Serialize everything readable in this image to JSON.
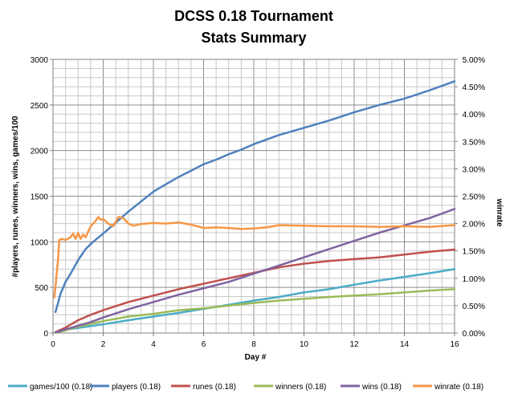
{
  "chart_data": {
    "type": "line",
    "title": "DCSS 0.18 Tournament",
    "subtitle": "Stats Summary",
    "xlabel": "Day #",
    "ylabel": "#players, runes, winners, wins, games/100",
    "y2label": "winrate",
    "xlim": [
      0,
      16
    ],
    "ylim": [
      0,
      3000
    ],
    "y2lim": [
      0,
      0.05
    ],
    "x_ticks": [
      "0",
      "2",
      "4",
      "6",
      "8",
      "10",
      "12",
      "14",
      "16"
    ],
    "y_ticks": [
      "0",
      "500",
      "1000",
      "1500",
      "2000",
      "2500",
      "3000"
    ],
    "y2_ticks": [
      "0.00%",
      "0.50%",
      "1.00%",
      "1.50%",
      "2.00%",
      "2.50%",
      "3.00%",
      "3.50%",
      "4.00%",
      "4.50%",
      "5.00%"
    ],
    "grid": true,
    "legend_position": "bottom",
    "series": [
      {
        "name": "games/100 (0.18)",
        "color": "#4BACC6",
        "axis": "left",
        "points": [
          [
            0.1,
            10
          ],
          [
            0.5,
            35
          ],
          [
            1,
            55
          ],
          [
            2,
            95
          ],
          [
            3,
            140
          ],
          [
            4,
            180
          ],
          [
            5,
            220
          ],
          [
            6,
            265
          ],
          [
            7,
            310
          ],
          [
            8,
            355
          ],
          [
            9,
            395
          ],
          [
            10,
            445
          ],
          [
            11,
            480
          ],
          [
            12,
            530
          ],
          [
            13,
            575
          ],
          [
            14,
            615
          ],
          [
            15,
            655
          ],
          [
            16,
            700
          ]
        ]
      },
      {
        "name": "players (0.18)",
        "color": "#4F81BD",
        "axis": "left",
        "points": [
          [
            0.1,
            230
          ],
          [
            0.2,
            330
          ],
          [
            0.3,
            430
          ],
          [
            0.5,
            560
          ],
          [
            0.7,
            650
          ],
          [
            1,
            800
          ],
          [
            1.3,
            920
          ],
          [
            1.6,
            1000
          ],
          [
            2,
            1090
          ],
          [
            2.5,
            1210
          ],
          [
            3,
            1330
          ],
          [
            3.5,
            1440
          ],
          [
            4,
            1550
          ],
          [
            4.5,
            1630
          ],
          [
            5,
            1710
          ],
          [
            5.5,
            1780
          ],
          [
            6,
            1850
          ],
          [
            6.5,
            1900
          ],
          [
            7,
            1960
          ],
          [
            7.5,
            2010
          ],
          [
            8,
            2070
          ],
          [
            9,
            2170
          ],
          [
            10,
            2250
          ],
          [
            11,
            2330
          ],
          [
            12,
            2420
          ],
          [
            13,
            2500
          ],
          [
            14,
            2570
          ],
          [
            15,
            2660
          ],
          [
            16,
            2760
          ]
        ]
      },
      {
        "name": "runes (0.18)",
        "color": "#C0504D",
        "axis": "left",
        "points": [
          [
            0.1,
            10
          ],
          [
            0.5,
            60
          ],
          [
            1,
            140
          ],
          [
            1.5,
            200
          ],
          [
            2,
            250
          ],
          [
            3,
            340
          ],
          [
            4,
            410
          ],
          [
            5,
            480
          ],
          [
            6,
            540
          ],
          [
            7,
            600
          ],
          [
            8,
            660
          ],
          [
            9,
            720
          ],
          [
            10,
            760
          ],
          [
            11,
            790
          ],
          [
            12,
            810
          ],
          [
            13,
            830
          ],
          [
            14,
            860
          ],
          [
            15,
            890
          ],
          [
            16,
            915
          ]
        ]
      },
      {
        "name": "winners (0.18)",
        "color": "#9BBB59",
        "axis": "left",
        "points": [
          [
            0.1,
            5
          ],
          [
            0.5,
            30
          ],
          [
            1,
            70
          ],
          [
            1.5,
            100
          ],
          [
            2,
            130
          ],
          [
            3,
            180
          ],
          [
            4,
            210
          ],
          [
            5,
            250
          ],
          [
            6,
            270
          ],
          [
            7,
            300
          ],
          [
            8,
            330
          ],
          [
            9,
            355
          ],
          [
            10,
            375
          ],
          [
            11,
            395
          ],
          [
            12,
            410
          ],
          [
            13,
            425
          ],
          [
            14,
            445
          ],
          [
            15,
            465
          ],
          [
            16,
            480
          ]
        ]
      },
      {
        "name": "wins (0.18)",
        "color": "#8064A2",
        "axis": "left",
        "points": [
          [
            0.1,
            5
          ],
          [
            0.5,
            40
          ],
          [
            1,
            80
          ],
          [
            1.5,
            120
          ],
          [
            2,
            170
          ],
          [
            3,
            260
          ],
          [
            4,
            340
          ],
          [
            5,
            420
          ],
          [
            6,
            490
          ],
          [
            7,
            560
          ],
          [
            8,
            650
          ],
          [
            9,
            740
          ],
          [
            10,
            830
          ],
          [
            11,
            920
          ],
          [
            12,
            1010
          ],
          [
            13,
            1100
          ],
          [
            14,
            1180
          ],
          [
            15,
            1260
          ],
          [
            16,
            1360
          ]
        ]
      },
      {
        "name": "winrate (0.18)",
        "color": "#F79646",
        "axis": "right",
        "points": [
          [
            0.05,
            0.0065
          ],
          [
            0.1,
            0.0085
          ],
          [
            0.2,
            0.0135
          ],
          [
            0.25,
            0.017
          ],
          [
            0.35,
            0.0172
          ],
          [
            0.5,
            0.017
          ],
          [
            0.7,
            0.0175
          ],
          [
            0.8,
            0.0182
          ],
          [
            0.9,
            0.0172
          ],
          [
            1,
            0.0183
          ],
          [
            1.1,
            0.0172
          ],
          [
            1.2,
            0.018
          ],
          [
            1.3,
            0.0175
          ],
          [
            1.5,
            0.0195
          ],
          [
            1.7,
            0.0205
          ],
          [
            1.8,
            0.0212
          ],
          [
            1.9,
            0.0207
          ],
          [
            2.0,
            0.0208
          ],
          [
            2.2,
            0.02
          ],
          [
            2.4,
            0.0195
          ],
          [
            2.6,
            0.0212
          ],
          [
            2.8,
            0.021
          ],
          [
            3.0,
            0.02
          ],
          [
            3.2,
            0.0196
          ],
          [
            3.5,
            0.0199
          ],
          [
            4,
            0.0201
          ],
          [
            4.5,
            0.02
          ],
          [
            5,
            0.0202
          ],
          [
            5.5,
            0.0198
          ],
          [
            6,
            0.0192
          ],
          [
            6.5,
            0.0193
          ],
          [
            7,
            0.0192
          ],
          [
            7.5,
            0.019
          ],
          [
            8,
            0.0191
          ],
          [
            8.5,
            0.0193
          ],
          [
            9,
            0.0197
          ],
          [
            10,
            0.0196
          ],
          [
            11,
            0.0195
          ],
          [
            12,
            0.0195
          ],
          [
            13,
            0.0194
          ],
          [
            14,
            0.0195
          ],
          [
            15,
            0.0194
          ],
          [
            16,
            0.0197
          ]
        ]
      }
    ]
  }
}
